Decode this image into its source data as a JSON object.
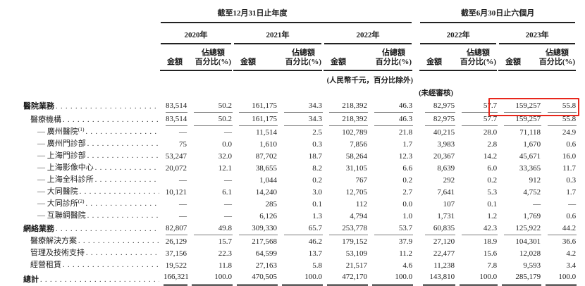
{
  "page": {
    "background": "#ffffff",
    "highlight_color": "#e8271c"
  },
  "header": {
    "column_groups": [
      {
        "title": "截至12月31日止年度",
        "years": [
          "2020年",
          "2021年",
          "2022年"
        ]
      },
      {
        "title": "截至6月30日止六個月",
        "years": [
          "2022年",
          "2023年"
        ]
      }
    ],
    "amount_label": "金額",
    "pct_line1": "佔總額",
    "pct_line2": "百分比(%)"
  },
  "notes": {
    "units": "(人民幣千元，百分比除外)",
    "unaudited": "(未經審核)"
  },
  "table": {
    "value_columns": [
      "2020年 金額",
      "2020年 佔總額百分比(%)",
      "2021年 金額",
      "2021年 佔總額百分比(%)",
      "2022年 金額",
      "2022年 佔總額百分比(%)",
      "截至2022年6月30日止六個月 金額",
      "截至2022年6月30日止六個月 佔總額百分比(%)",
      "截至2023年6月30日止六個月 金額",
      "截至2023年6月30日止六個月 佔總額百分比(%)"
    ],
    "rows": [
      {
        "label": "醫院業務",
        "sup": "",
        "indent": 0,
        "bold": true,
        "rule": "single",
        "values": [
          "83,514",
          "50.2",
          "161,175",
          "34.3",
          "218,392",
          "46.3",
          "82,975",
          "57.7",
          "159,257",
          "55.8"
        ]
      },
      {
        "label": "醫療機構",
        "sup": "",
        "indent": 1,
        "bold": false,
        "rule": "single",
        "values": [
          "83,514",
          "50.2",
          "161,175",
          "34.3",
          "218,392",
          "46.3",
          "82,975",
          "57.7",
          "159,257",
          "55.8"
        ]
      },
      {
        "label": "— 廣州醫院",
        "sup": "(1)",
        "indent": 2,
        "bold": false,
        "rule": "",
        "values": [
          "—",
          "—",
          "11,514",
          "2.5",
          "102,789",
          "21.8",
          "40,215",
          "28.0",
          "71,118",
          "24.9"
        ]
      },
      {
        "label": "— 廣州門診部",
        "sup": "",
        "indent": 2,
        "bold": false,
        "rule": "",
        "values": [
          "75",
          "0.0",
          "1,610",
          "0.3",
          "7,856",
          "1.7",
          "3,983",
          "2.8",
          "1,670",
          "0.6"
        ]
      },
      {
        "label": "— 上海門診部",
        "sup": "",
        "indent": 2,
        "bold": false,
        "rule": "",
        "values": [
          "53,247",
          "32.0",
          "87,702",
          "18.7",
          "58,264",
          "12.3",
          "20,367",
          "14.2",
          "45,671",
          "16.0"
        ]
      },
      {
        "label": "— 上海影像中心",
        "sup": "",
        "indent": 2,
        "bold": false,
        "rule": "",
        "values": [
          "20,072",
          "12.1",
          "38,655",
          "8.2",
          "31,105",
          "6.6",
          "8,639",
          "6.0",
          "33,365",
          "11.7"
        ]
      },
      {
        "label": "— 上海全科診所",
        "sup": "",
        "indent": 2,
        "bold": false,
        "rule": "",
        "values": [
          "—",
          "—",
          "1,044",
          "0.2",
          "767",
          "0.2",
          "292",
          "0.2",
          "912",
          "0.3"
        ]
      },
      {
        "label": "— 大同醫院",
        "sup": "",
        "indent": 2,
        "bold": false,
        "rule": "",
        "values": [
          "10,121",
          "6.1",
          "14,240",
          "3.0",
          "12,705",
          "2.7",
          "7,641",
          "5.3",
          "4,752",
          "1.7"
        ]
      },
      {
        "label": "— 大同診所",
        "sup": "(2)",
        "indent": 2,
        "bold": false,
        "rule": "",
        "values": [
          "—",
          "—",
          "285",
          "0.1",
          "112",
          "0.0",
          "107",
          "0.1",
          "—",
          "—"
        ]
      },
      {
        "label": "— 互聯網醫院",
        "sup": "",
        "indent": 2,
        "bold": false,
        "rule": "",
        "values": [
          "—",
          "—",
          "6,126",
          "1.3",
          "4,794",
          "1.0",
          "1,731",
          "1.2",
          "1,769",
          "0.6"
        ]
      },
      {
        "label": "網絡業務",
        "sup": "",
        "indent": 0,
        "bold": true,
        "rule": "single",
        "values": [
          "82,807",
          "49.8",
          "309,330",
          "65.7",
          "253,778",
          "53.7",
          "60,835",
          "42.3",
          "125,922",
          "44.2"
        ]
      },
      {
        "label": "醫療解決方案",
        "sup": "",
        "indent": 1,
        "bold": false,
        "rule": "",
        "values": [
          "26,129",
          "15.7",
          "217,568",
          "46.2",
          "179,152",
          "37.9",
          "27,120",
          "18.9",
          "104,301",
          "36.6"
        ]
      },
      {
        "label": "管理及技術支持",
        "sup": "",
        "indent": 1,
        "bold": false,
        "rule": "",
        "values": [
          "37,156",
          "22.3",
          "64,599",
          "13.7",
          "53,109",
          "11.2",
          "22,477",
          "15.6",
          "12,028",
          "4.2"
        ]
      },
      {
        "label": "經營租賃",
        "sup": "",
        "indent": 1,
        "bold": false,
        "rule": "",
        "values": [
          "19,522",
          "11.8",
          "27,163",
          "5.8",
          "21,517",
          "4.6",
          "11,238",
          "7.8",
          "9,593",
          "3.4"
        ]
      },
      {
        "label": "總計",
        "sup": "",
        "indent": 0,
        "bold": true,
        "rule": "double",
        "values": [
          "166,321",
          "100.0",
          "470,505",
          "100.0",
          "472,170",
          "100.0",
          "143,810",
          "100.0",
          "285,179",
          "100.0"
        ]
      }
    ],
    "highlight": {
      "row_index": 0,
      "value_col_start": 8,
      "value_col_end": 9
    }
  }
}
